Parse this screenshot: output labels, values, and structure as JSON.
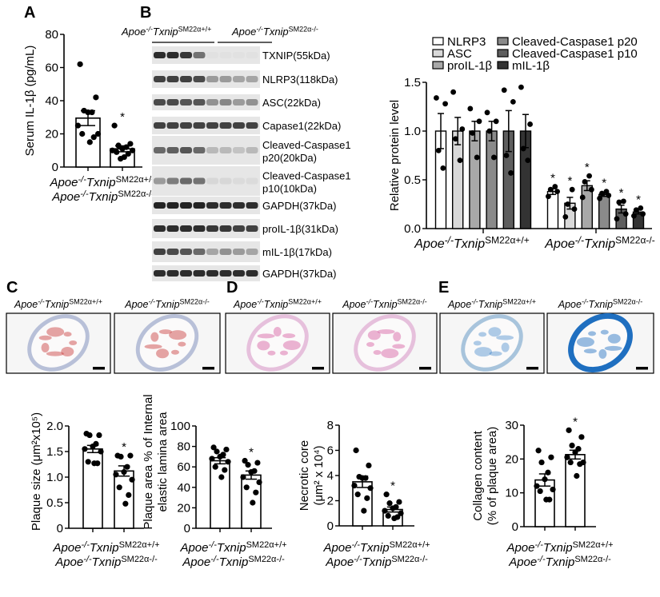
{
  "panel_labels": [
    "A",
    "B",
    "C",
    "D",
    "E"
  ],
  "genotypes": [
    {
      "a": "Apoe",
      "a_sup": "-/-",
      "b": "Txnip",
      "b_sup": "SM22α+/+"
    },
    {
      "a": "Apoe",
      "a_sup": "-/-",
      "b": "Txnip",
      "b_sup": "SM22α-/-"
    }
  ],
  "blot": {
    "rows": [
      {
        "lines": [
          "TXNIP(55kDa)"
        ]
      },
      {
        "lines": [
          "NLRP3(118kDa)"
        ]
      },
      {
        "lines": [
          "ASC(22kDa)"
        ]
      },
      {
        "lines": [
          "Capase1(22kDa)"
        ]
      },
      {
        "lines": [
          "Cleaved-Caspase1",
          "p20(20kDa)"
        ]
      },
      {
        "lines": [
          "Cleaved-Caspase1",
          "p10(10kDa)"
        ]
      },
      {
        "lines": [
          "GAPDH(37kDa)"
        ]
      },
      {
        "lines": [
          "proIL-1β(31kDa)"
        ]
      },
      {
        "lines": [
          "mIL-1β(17kDa)"
        ]
      },
      {
        "lines": [
          "GAPDH(37kDa)"
        ]
      }
    ]
  },
  "histology": {
    "scale_bar_color": "#000000",
    "stain_colors": {
      "C": "#c83a3a",
      "D": "#d45aa0",
      "E": "#1f6fc0"
    }
  },
  "chart_data": [
    {
      "id": "A",
      "type": "bar",
      "title": "",
      "ylabel": [
        "Serum IL-1β (pg/mL)"
      ],
      "xlabel": "",
      "ylim": [
        0,
        80
      ],
      "yticks": [
        0,
        20,
        40,
        60,
        80
      ],
      "ytick_labels": [
        "0",
        "20",
        "40",
        "60",
        "80"
      ],
      "categories": [
        {
          "a": "Apoe",
          "a_sup": "-/-",
          "b": "Txnip",
          "b_sup": "SM22α+/+"
        },
        {
          "a": "Apoe",
          "a_sup": "-/-",
          "b": "Txnip",
          "b_sup": "SM22α-/-"
        }
      ],
      "values": [
        29.5,
        11
      ],
      "sem": [
        4.5,
        1.8
      ],
      "points": [
        [
          62,
          42,
          34,
          33,
          33,
          25,
          20,
          20,
          18,
          15
        ],
        [
          25,
          14,
          13,
          12,
          11,
          10,
          10,
          9,
          8,
          6,
          5
        ]
      ],
      "significance": [
        "",
        "*"
      ]
    },
    {
      "id": "B",
      "type": "bar",
      "ylabel": [
        "Relative protein level"
      ],
      "xlabel": "",
      "ylim": [
        0,
        1.5
      ],
      "yticks": [
        0,
        0.5,
        1.0,
        1.5
      ],
      "ytick_labels": [
        "0.0",
        "0.5",
        "1.0",
        "1.5"
      ],
      "legend_position": "top",
      "categories": [
        {
          "a": "Apoe",
          "a_sup": "-/-",
          "b": "Txnip",
          "b_sup": "SM22α+/+"
        },
        {
          "a": "Apoe",
          "a_sup": "-/-",
          "b": "Txnip",
          "b_sup": "SM22α-/-"
        }
      ],
      "series": [
        {
          "name": "NLRP3",
          "color": "#ffffff",
          "values": [
            1.0,
            0.38
          ],
          "sem": [
            0.18,
            0.03
          ],
          "points": [
            [
              1.34,
              1.28,
              0.8,
              0.62
            ],
            [
              0.33,
              0.38,
              0.4,
              0.43
            ]
          ],
          "significance": [
            "",
            "*"
          ]
        },
        {
          "name": "ASC",
          "color": "#d9d9d9",
          "values": [
            1.0,
            0.26
          ],
          "sem": [
            0.14,
            0.06
          ],
          "points": [
            [
              1.4,
              1.02,
              0.92,
              0.7
            ],
            [
              0.12,
              0.2,
              0.25,
              0.4
            ]
          ],
          "significance": [
            "",
            "*"
          ]
        },
        {
          "name": "proIL-1β",
          "color": "#a8a8a8",
          "values": [
            1.0,
            0.44
          ],
          "sem": [
            0.1,
            0.05
          ],
          "points": [
            [
              1.23,
              1.1,
              0.98,
              0.73
            ],
            [
              0.32,
              0.4,
              0.48,
              0.54
            ]
          ],
          "significance": [
            "",
            "*"
          ]
        },
        {
          "name": "Cleaved-Caspase1 p20",
          "color": "#8a8a8a",
          "values": [
            1.0,
            0.35
          ],
          "sem": [
            0.1,
            0.02
          ],
          "points": [
            [
              1.19,
              1.1,
              1.0,
              0.73
            ],
            [
              0.31,
              0.34,
              0.36,
              0.38
            ]
          ],
          "significance": [
            "",
            "*"
          ]
        },
        {
          "name": "Cleaved-Caspase1 p10",
          "color": "#5e5e5e",
          "values": [
            1.0,
            0.2
          ],
          "sem": [
            0.21,
            0.04
          ],
          "points": [
            [
              1.42,
              1.3,
              0.75,
              0.57
            ],
            [
              0.1,
              0.15,
              0.27,
              0.28
            ]
          ],
          "significance": [
            "",
            "*"
          ]
        },
        {
          "name": "mIL-1β",
          "color": "#333333",
          "values": [
            1.0,
            0.17
          ],
          "sem": [
            0.17,
            0.02
          ],
          "points": [
            [
              1.45,
              1.07,
              0.82,
              0.7
            ],
            [
              0.13,
              0.15,
              0.19,
              0.21
            ]
          ],
          "significance": [
            "",
            "*"
          ]
        }
      ]
    },
    {
      "id": "C-size",
      "type": "bar",
      "ylabel": [
        "Plaque size (μm²x10⁵)"
      ],
      "ylim": [
        0,
        2.0
      ],
      "yticks": [
        0,
        0.5,
        1.0,
        1.5,
        2.0
      ],
      "ytick_labels": [
        "0",
        "0.5",
        "1.0",
        "1.5",
        "2.0"
      ],
      "categories": [
        {
          "a": "Apoe",
          "a_sup": "-/-",
          "b": "Txnip",
          "b_sup": "SM22α+/+"
        },
        {
          "a": "Apoe",
          "a_sup": "-/-",
          "b": "Txnip",
          "b_sup": "SM22α-/-"
        }
      ],
      "values": [
        1.55,
        1.12
      ],
      "sem": [
        0.07,
        0.1
      ],
      "points": [
        [
          1.85,
          1.82,
          1.82,
          1.65,
          1.6,
          1.55,
          1.5,
          1.3,
          1.27,
          1.27
        ],
        [
          1.42,
          1.42,
          1.4,
          1.2,
          1.1,
          1.05,
          0.95,
          0.8,
          0.65,
          0.48
        ]
      ],
      "significance": [
        "",
        "*"
      ]
    },
    {
      "id": "C-area",
      "type": "bar",
      "ylabel": [
        "Plaque area % of Internal",
        "elastic lamina area"
      ],
      "ylim": [
        0,
        100
      ],
      "yticks": [
        0,
        20,
        40,
        60,
        80,
        100
      ],
      "ytick_labels": [
        "0",
        "20",
        "40",
        "60",
        "80",
        "100"
      ],
      "categories": [
        {
          "a": "Apoe",
          "a_sup": "-/-",
          "b": "Txnip",
          "b_sup": "SM22α+/+"
        },
        {
          "a": "Apoe",
          "a_sup": "-/-",
          "b": "Txnip",
          "b_sup": "SM22α-/-"
        }
      ],
      "values": [
        66,
        52
      ],
      "sem": [
        3,
        4
      ],
      "points": [
        [
          79,
          77,
          75,
          72,
          70,
          68,
          65,
          60,
          57,
          50
        ],
        [
          66,
          64,
          62,
          56,
          55,
          50,
          45,
          40,
          35,
          25
        ]
      ],
      "significance": [
        "",
        "*"
      ]
    },
    {
      "id": "D",
      "type": "bar",
      "ylabel": [
        "Necrotic core",
        "(μm² x 10⁴)"
      ],
      "ylim": [
        0,
        8
      ],
      "yticks": [
        0,
        2,
        4,
        6,
        8
      ],
      "ytick_labels": [
        "0",
        "2",
        "4",
        "6",
        "8"
      ],
      "categories": [
        {
          "a": "Apoe",
          "a_sup": "-/-",
          "b": "Txnip",
          "b_sup": "SM22α+/+"
        },
        {
          "a": "Apoe",
          "a_sup": "-/-",
          "b": "Txnip",
          "b_sup": "SM22α-/-"
        }
      ],
      "values": [
        3.5,
        1.3
      ],
      "sem": [
        0.45,
        0.2
      ],
      "points": [
        [
          6.0,
          4.8,
          3.9,
          3.8,
          3.8,
          3.2,
          3.0,
          2.5,
          2.2,
          1.2
        ],
        [
          2.5,
          1.9,
          1.8,
          1.5,
          1.4,
          1.2,
          1.0,
          0.8,
          0.7,
          0.6
        ]
      ],
      "significance": [
        "",
        "*"
      ]
    },
    {
      "id": "E",
      "type": "bar",
      "ylabel": [
        "Collagen content",
        "(% of plaque area)"
      ],
      "ylim": [
        0,
        30
      ],
      "yticks": [
        0,
        10,
        20,
        30
      ],
      "ytick_labels": [
        "0",
        "10",
        "20",
        "30"
      ],
      "categories": [
        {
          "a": "Apoe",
          "a_sup": "-/-",
          "b": "Txnip",
          "b_sup": "SM22α+/+"
        },
        {
          "a": "Apoe",
          "a_sup": "-/-",
          "b": "Txnip",
          "b_sup": "SM22α-/-"
        }
      ],
      "values": [
        13.8,
        21.3
      ],
      "sem": [
        1.8,
        1.3
      ],
      "points": [
        [
          22.5,
          20.5,
          19,
          16,
          14,
          12,
          11,
          10.5,
          8,
          8
        ],
        [
          28.5,
          26.5,
          24,
          23,
          22,
          20.5,
          19,
          19,
          18.5,
          15
        ]
      ],
      "significance": [
        "",
        "*"
      ]
    }
  ]
}
